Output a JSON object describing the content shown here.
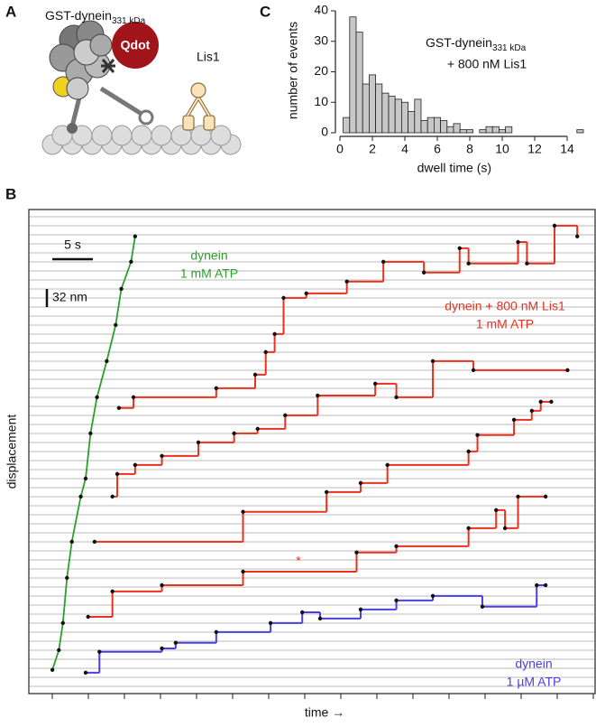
{
  "panel_labels": [
    "A",
    "B",
    "C"
  ],
  "panel_a": {
    "protein": "GST-dynein",
    "protein_sub": "331 kDa",
    "qdot": "Qdot",
    "lis1": "Lis1"
  },
  "chart_data": [
    {
      "type": "histogram",
      "xlabel": "dwell time (s)",
      "ylabel": "number of events",
      "annotation": [
        "GST-dynein",
        "+ 800 nM Lis1"
      ],
      "annotation_sub": "331 kDa",
      "bins": [
        0.2,
        0.6,
        1.0,
        1.4,
        1.8,
        2.2,
        2.6,
        3.0,
        3.4,
        3.8,
        4.2,
        4.6,
        5.0,
        5.4,
        5.8,
        6.2,
        6.6,
        7.0,
        7.4,
        7.8,
        8.2,
        8.6,
        9.0,
        9.4,
        9.8,
        10.2,
        10.6,
        11.0,
        11.4,
        11.8,
        12.2,
        12.6,
        13.0,
        13.4,
        13.8,
        14.2,
        14.6,
        15.0
      ],
      "values": [
        5,
        38,
        33,
        16,
        19,
        16,
        13,
        12,
        11,
        10,
        7,
        11,
        4,
        5,
        5,
        4,
        2,
        3,
        1,
        1,
        0,
        1,
        2,
        2,
        1,
        2,
        0,
        0,
        0,
        0,
        0,
        0,
        0,
        0,
        0,
        0,
        1
      ],
      "color": "#c8c8c8",
      "xlim": [
        0,
        15.2
      ],
      "ylim": [
        0,
        40
      ],
      "xticks": [
        0,
        2,
        4,
        6,
        8,
        10,
        12,
        14
      ],
      "yticks": [
        0,
        10,
        20,
        30,
        40
      ]
    },
    {
      "type": "trace",
      "xlabel": "time →",
      "ylabel": "displacement",
      "xlim": [
        0,
        69.8
      ],
      "ylim": [
        0,
        857.6
      ],
      "scale_bars": [
        {
          "value": 5,
          "label": "5 s"
        },
        {
          "value": 32,
          "label": "32 nm"
        }
      ],
      "annotation": "*",
      "series": [
        {
          "color": "#2ca02c",
          "step": false,
          "label": [
            "dynein",
            "1 mM ATP"
          ],
          "x": [
            2.9,
            3.7,
            4.2,
            4.7,
            5.3,
            6.4,
            7.0,
            7.6,
            8.4,
            9.6,
            10.7,
            11.4,
            12.6,
            13.1
          ],
          "values": [
            42,
            77,
            125,
            205,
            269,
            349,
            381,
            461,
            525,
            589,
            653,
            717,
            765,
            810
          ]
        },
        {
          "color": "#e8321e",
          "step": true,
          "label": [
            "dynein + 800 nM Lis1",
            "1 mM ATP"
          ],
          "x": [
            11.1,
            12.9,
            23.1,
            27.9,
            29.2,
            30.3,
            31.4,
            34.2,
            39.2,
            43.7,
            48.7,
            53.1,
            54.2,
            60.3,
            61.4,
            64.8,
            67.6
          ],
          "values": [
            506,
            525,
            541,
            565,
            605,
            637,
            701,
            709,
            730,
            765,
            746,
            789,
            762,
            800,
            762,
            829,
            810
          ]
        },
        {
          "color": "#e8321e",
          "step": true,
          "x": [
            10.3,
            10.9,
            13.1,
            16.4,
            20.9,
            25.3,
            28.2,
            31.6,
            35.6,
            42.7,
            45.3,
            49.8,
            54.8,
            66.4
          ],
          "values": [
            349,
            389,
            405,
            421,
            445,
            461,
            469,
            493,
            528,
            549,
            525,
            589,
            573,
            573
          ]
        },
        {
          "color": "#e8321e",
          "step": true,
          "x": [
            8.1,
            26.4,
            36.7,
            40.9,
            44.2,
            54.2,
            55.3,
            59.8,
            62.0,
            63.1,
            64.4
          ],
          "values": [
            269,
            322,
            357,
            373,
            405,
            429,
            458,
            485,
            501,
            517,
            517
          ]
        },
        {
          "color": "#e8321e",
          "step": true,
          "x": [
            7.3,
            10.3,
            16.4,
            26.4,
            40.4,
            45.3,
            54.2,
            57.6,
            58.7,
            60.3,
            63.7
          ],
          "values": [
            136,
            181,
            192,
            216,
            250,
            261,
            293,
            325,
            293,
            349,
            349
          ]
        },
        {
          "color": "#4a3fe0",
          "step": true,
          "label": [
            "dynein",
            "1 µM ATP"
          ],
          "x": [
            7.0,
            8.7,
            16.4,
            18.1,
            23.1,
            29.8,
            33.7,
            35.9,
            40.9,
            45.3,
            49.8,
            55.9,
            62.6,
            63.7
          ],
          "values": [
            37,
            74,
            80,
            90,
            109,
            125,
            144,
            133,
            149,
            165,
            173,
            154,
            192,
            192
          ]
        }
      ]
    }
  ]
}
